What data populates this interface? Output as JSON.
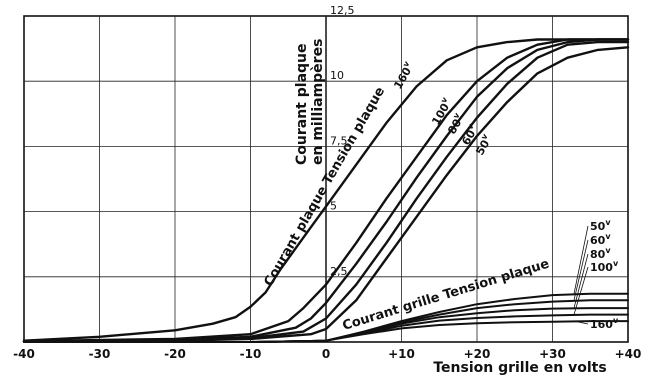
{
  "chart_data": {
    "type": "line",
    "xlabel": "Tension grille en volts",
    "ylabel_lines": [
      "Courant plaque",
      "en milliampères"
    ],
    "xlim": [
      -40,
      40
    ],
    "ylim": [
      0,
      12.5
    ],
    "x_ticks": [
      -40,
      -30,
      -20,
      -10,
      0,
      10,
      20,
      30,
      40
    ],
    "x_tick_labels": [
      "-40",
      "-30",
      "-20",
      "-10",
      "0",
      "+10",
      "+20",
      "+30",
      "+40"
    ],
    "y_ticks": [
      2.5,
      5,
      7.5,
      10,
      12.5
    ],
    "y_tick_labels": [
      "2,5",
      "5",
      "7,5",
      "10",
      "12,5"
    ],
    "grid": true,
    "plate_group_label": "Courant plaque Tension plaque",
    "grid_group_label": "Courant grille Tension plaque",
    "plate_series": [
      {
        "name": "160v",
        "label_text": "160",
        "x": [
          -40,
          -30,
          -20,
          -15,
          -12,
          -10,
          -8,
          -6,
          -4,
          -2,
          0,
          4,
          8,
          12,
          16,
          20,
          24,
          28,
          32,
          36,
          40
        ],
        "y": [
          0.05,
          0.2,
          0.45,
          0.7,
          0.95,
          1.35,
          1.9,
          2.8,
          3.6,
          4.4,
          5.2,
          6.8,
          8.4,
          9.8,
          10.8,
          11.3,
          11.5,
          11.6,
          11.6,
          11.6,
          11.6
        ]
      },
      {
        "name": "100v",
        "label_text": "100",
        "x": [
          -40,
          -20,
          -10,
          -5,
          -3,
          0,
          4,
          8,
          12,
          16,
          20,
          24,
          28,
          32,
          36,
          40
        ],
        "y": [
          0.03,
          0.12,
          0.3,
          0.8,
          1.3,
          2.2,
          3.8,
          5.5,
          7.1,
          8.7,
          10.0,
          10.9,
          11.4,
          11.6,
          11.6,
          11.6
        ]
      },
      {
        "name": "80v",
        "label_text": "80",
        "x": [
          -40,
          -20,
          -10,
          -4,
          -2,
          0,
          4,
          8,
          12,
          16,
          20,
          24,
          28,
          32,
          36,
          40
        ],
        "y": [
          0.02,
          0.08,
          0.2,
          0.55,
          0.9,
          1.5,
          3.0,
          4.6,
          6.3,
          7.9,
          9.4,
          10.5,
          11.2,
          11.5,
          11.6,
          11.6
        ]
      },
      {
        "name": "60v",
        "label_text": "60",
        "x": [
          -40,
          -20,
          -10,
          -3,
          0,
          4,
          8,
          12,
          16,
          20,
          24,
          28,
          32,
          36,
          40
        ],
        "y": [
          0.02,
          0.06,
          0.15,
          0.4,
          0.9,
          2.2,
          3.8,
          5.5,
          7.1,
          8.6,
          9.9,
          10.9,
          11.4,
          11.5,
          11.5
        ]
      },
      {
        "name": "50v",
        "label_text": "50",
        "x": [
          -40,
          -20,
          -10,
          -2,
          0,
          4,
          8,
          12,
          16,
          20,
          24,
          28,
          32,
          36,
          40
        ],
        "y": [
          0.02,
          0.05,
          0.12,
          0.3,
          0.5,
          1.6,
          3.2,
          4.8,
          6.4,
          7.9,
          9.2,
          10.3,
          10.9,
          11.2,
          11.3
        ]
      }
    ],
    "grid_series": [
      {
        "name": "50v",
        "label_text": "50",
        "x": [
          -40,
          -10,
          0,
          5,
          10,
          15,
          20,
          25,
          30,
          35,
          40
        ],
        "y": [
          0,
          0,
          0.05,
          0.4,
          0.8,
          1.15,
          1.45,
          1.65,
          1.8,
          1.85,
          1.85
        ]
      },
      {
        "name": "60v",
        "label_text": "60",
        "x": [
          -40,
          -10,
          0,
          5,
          10,
          15,
          20,
          25,
          30,
          35,
          40
        ],
        "y": [
          0,
          0,
          0.05,
          0.38,
          0.75,
          1.05,
          1.3,
          1.45,
          1.55,
          1.6,
          1.6
        ]
      },
      {
        "name": "80v",
        "label_text": "80",
        "x": [
          -40,
          -10,
          0,
          5,
          10,
          15,
          20,
          25,
          30,
          35,
          40
        ],
        "y": [
          0,
          0,
          0.05,
          0.35,
          0.7,
          0.95,
          1.1,
          1.22,
          1.28,
          1.3,
          1.3
        ]
      },
      {
        "name": "100v",
        "label_text": "100",
        "x": [
          -40,
          -10,
          0,
          5,
          10,
          15,
          20,
          25,
          30,
          35,
          40
        ],
        "y": [
          0,
          0,
          0.05,
          0.33,
          0.62,
          0.82,
          0.92,
          0.98,
          1.02,
          1.05,
          1.05
        ]
      },
      {
        "name": "160v",
        "label_text": "160",
        "x": [
          -40,
          -10,
          0,
          5,
          10,
          15,
          20,
          25,
          30,
          35,
          40
        ],
        "y": [
          0,
          0,
          0.05,
          0.3,
          0.52,
          0.65,
          0.72,
          0.76,
          0.78,
          0.8,
          0.8
        ]
      }
    ]
  },
  "colors": {
    "ink": "#111111",
    "grid": "#222222",
    "background": "#ffffff"
  }
}
